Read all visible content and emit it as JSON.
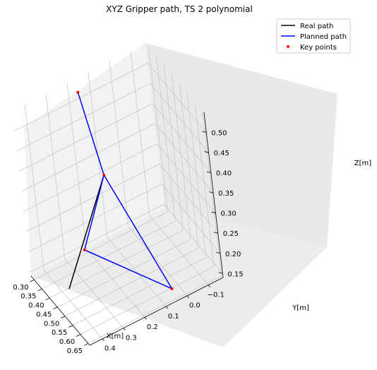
{
  "chart_data": {
    "type": "line",
    "title": "XYZ Gripper path, TS 2 polynomial",
    "xlabel": "X[m]",
    "ylabel": "Y[m]",
    "zlabel": "Z[m]",
    "x_ticks": [
      "0.30",
      "0.35",
      "0.40",
      "0.45",
      "0.50",
      "0.55",
      "0.60",
      "0.65"
    ],
    "y_ticks": [
      "−0.1",
      "0.0",
      "0.1",
      "0.2",
      "0.3",
      "0.4"
    ],
    "z_ticks": [
      "0.15",
      "0.20",
      "0.25",
      "0.30",
      "0.35",
      "0.40",
      "0.45",
      "0.50"
    ],
    "xlim": [
      0.28,
      0.66
    ],
    "ylim": [
      -0.17,
      0.46
    ],
    "zlim": [
      0.14,
      0.55
    ],
    "grid": true,
    "legend_position": "top-right",
    "series": [
      {
        "name": "Real path",
        "color": "#000000",
        "points": [
          [
            0.42,
            0.38,
            0.15
          ],
          [
            0.46,
            0.19,
            0.4
          ]
        ]
      },
      {
        "name": "Planned path",
        "color": "#0000ff",
        "points": [
          [
            0.46,
            0.19,
            0.4
          ],
          [
            0.3,
            0.22,
            0.15
          ],
          [
            0.62,
            0.04,
            0.15
          ],
          [
            0.46,
            0.19,
            0.4
          ],
          [
            0.37,
            0.21,
            0.57
          ]
        ]
      },
      {
        "name": "Key points",
        "color": "#ff0000",
        "type": "scatter",
        "points": [
          [
            0.46,
            0.19,
            0.4
          ],
          [
            0.3,
            0.22,
            0.15
          ],
          [
            0.62,
            0.04,
            0.15
          ],
          [
            0.37,
            0.21,
            0.57
          ]
        ]
      }
    ]
  }
}
